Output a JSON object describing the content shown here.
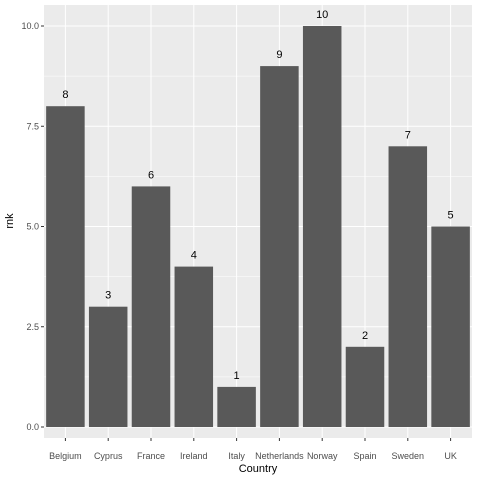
{
  "chart_data": {
    "type": "bar",
    "title": "",
    "xlabel": "Country",
    "ylabel": "rnk",
    "categories": [
      "Belgium",
      "Cyprus",
      "France",
      "Ireland",
      "Italy",
      "Netherlands",
      "Norway",
      "Spain",
      "Sweden",
      "UK"
    ],
    "values": [
      8,
      3,
      6,
      4,
      1,
      9,
      10,
      2,
      7,
      5
    ],
    "data_labels": [
      "8",
      "3",
      "6",
      "4",
      "1",
      "9",
      "10",
      "2",
      "7",
      "5"
    ],
    "ylim": [
      0,
      10
    ],
    "yticks": [
      0,
      2.5,
      5,
      7.5,
      10
    ],
    "ytick_labels": [
      "0.0",
      "2.5",
      "5.0",
      "7.5",
      "10.0"
    ],
    "grid": true,
    "legend": "none",
    "colors": {
      "panel": "#ebebeb",
      "grid_major": "#ffffff",
      "bar": "#595959"
    }
  }
}
